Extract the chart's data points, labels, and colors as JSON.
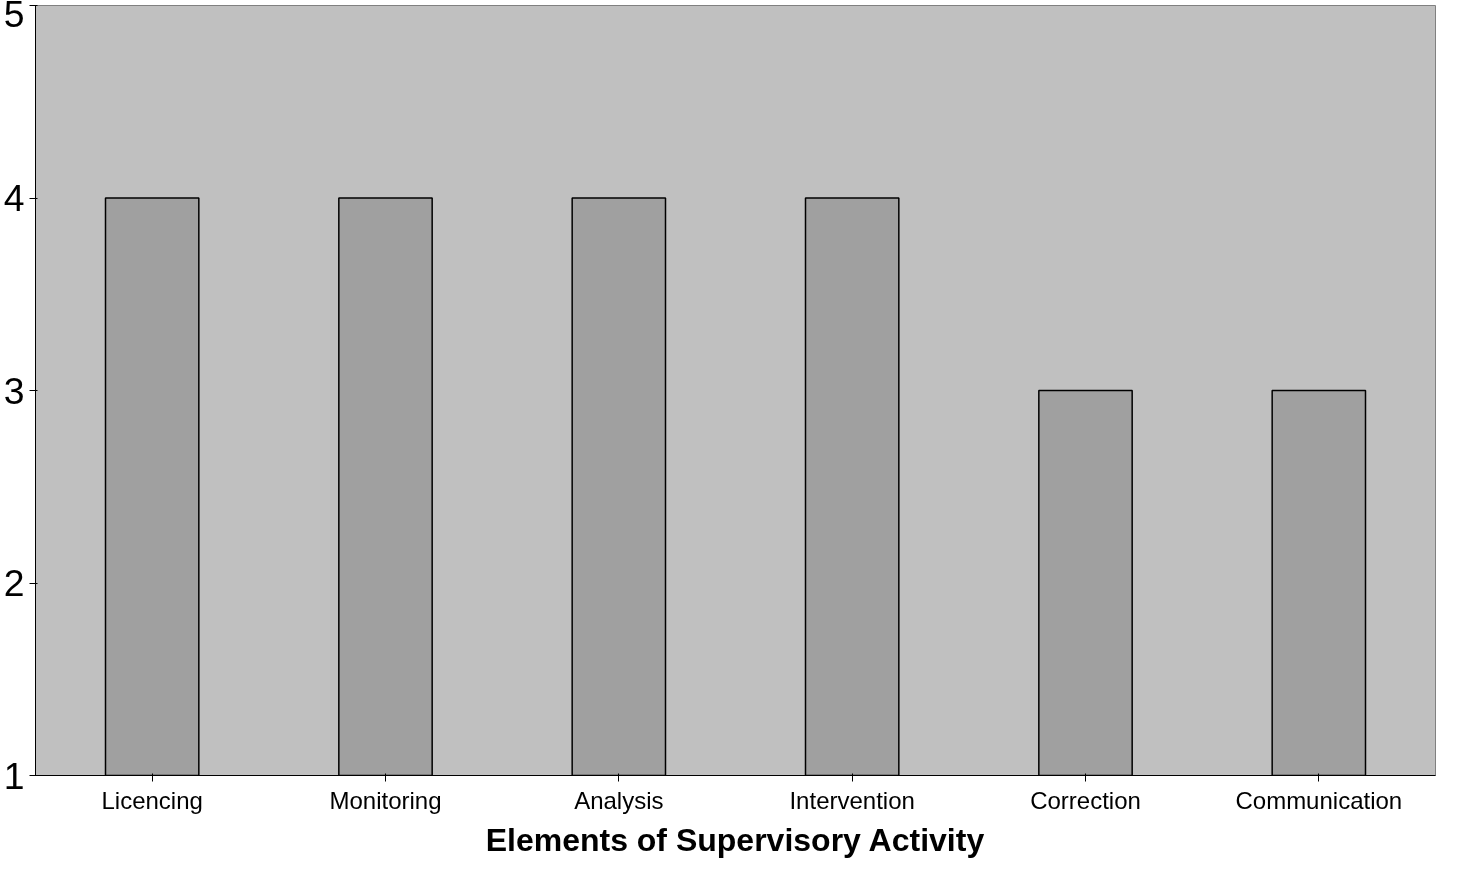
{
  "chart_data": {
    "type": "bar",
    "xlabel": "Elements of Supervisory Activity",
    "categories": [
      "Licencing",
      "Monitoring",
      "Analysis",
      "Intervention",
      "Correction",
      "Communication"
    ],
    "values": [
      4,
      4,
      4,
      4,
      3,
      3
    ],
    "color": "#a0a0a0",
    "ylim": [
      1,
      5
    ],
    "yticks": [
      1,
      2,
      3,
      4,
      5
    ],
    "grid": false
  }
}
